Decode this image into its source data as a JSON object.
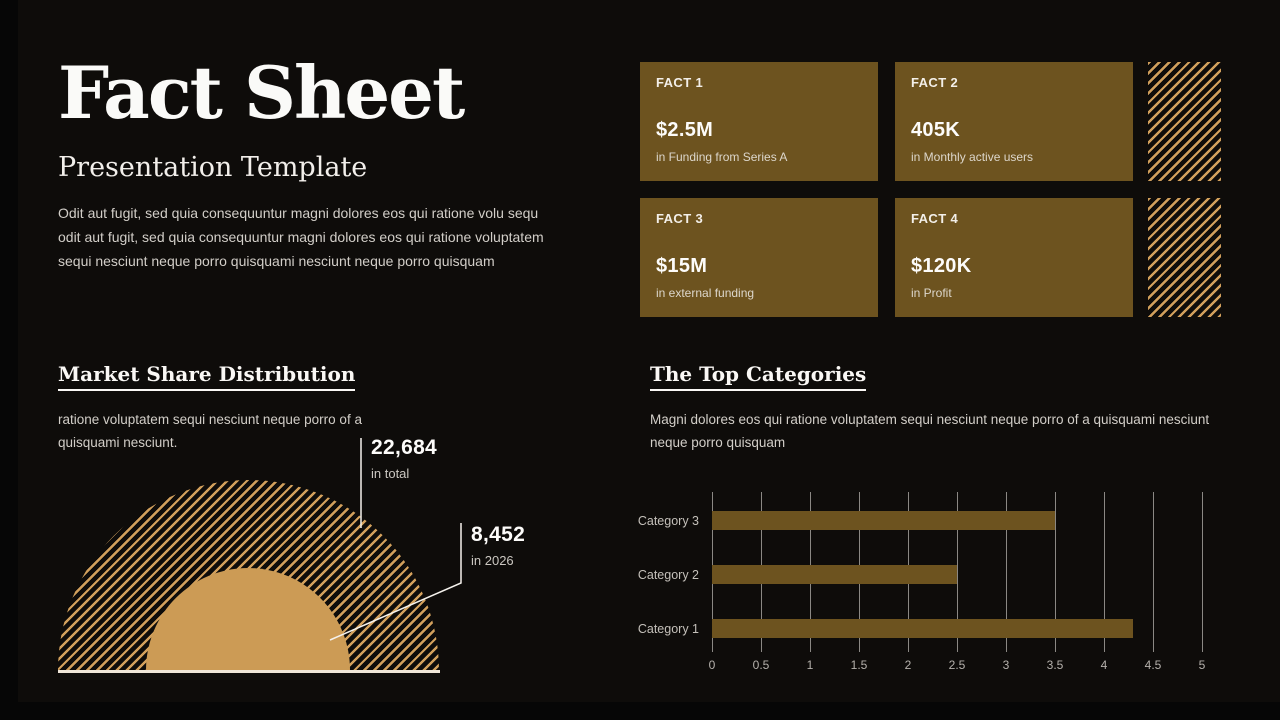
{
  "slide": {
    "title": "Fact Sheet",
    "subtitle": "Presentation Template",
    "intro": "Odit aut fugit, sed quia consequuntur magni dolores eos qui ratione volu sequ odit aut fugit, sed quia consequuntur magni dolores eos qui ratione voluptatem sequi nesciunt neque porro quisquami nesciunt neque porro quisquam"
  },
  "facts": [
    {
      "label": "FACT 1",
      "value": "$2.5M",
      "description": "in Funding from Series A"
    },
    {
      "label": "FACT 2",
      "value": "405K",
      "description": "in Monthly active users"
    },
    {
      "label": "FACT 3",
      "value": "$15M",
      "description": "in external funding"
    },
    {
      "label": "FACT 4",
      "value": "$120K",
      "description": "in Profit"
    }
  ],
  "market_share": {
    "heading": "Market Share Distribution",
    "description": "ratione voluptatem sequi nesciunt neque porro of a quisquami nesciunt.",
    "callouts": [
      {
        "value": "22,684",
        "label": "in total"
      },
      {
        "value": "8,452",
        "label": "in 2026"
      }
    ]
  },
  "top_categories": {
    "heading": "The Top Categories",
    "description": "Magni dolores eos qui ratione voluptatem sequi nesciunt neque porro of a quisquami nesciunt neque porro quisquam"
  },
  "chart_data": [
    {
      "type": "pie",
      "subtype": "nested-semicircle-proportional-area",
      "title": "Market Share Distribution",
      "series": [
        {
          "name": "in total",
          "value": 22684,
          "style": "diagonal-hatch"
        },
        {
          "name": "in 2026",
          "value": 8452,
          "style": "solid"
        }
      ],
      "legend_position": "callout-lines-right"
    },
    {
      "type": "bar",
      "orientation": "horizontal",
      "title": "The Top Categories",
      "categories_top_to_bottom": [
        "Category 3",
        "Category 2",
        "Category 1"
      ],
      "values_top_to_bottom": [
        3.5,
        2.5,
        4.3
      ],
      "xlim": [
        0,
        5
      ],
      "x_ticks": [
        "0",
        "0.5",
        "1",
        "1.5",
        "2",
        "2.5",
        "3",
        "3.5",
        "4",
        "4.5",
        "5"
      ],
      "grid": "vertical-on",
      "xlabel": "",
      "ylabel": ""
    }
  ],
  "colors": {
    "background": "#0e0c0a",
    "chrome": "#060606",
    "card_brown": "#6d531f",
    "bar_brown": "#6d531f",
    "hatch_tan": "#d2a05c",
    "inner_semicircle_tan": "#cc9b55",
    "baseline_cream": "#efe6d8",
    "heading_white": "#faf8f5",
    "body_gray": "#d2cec8"
  }
}
